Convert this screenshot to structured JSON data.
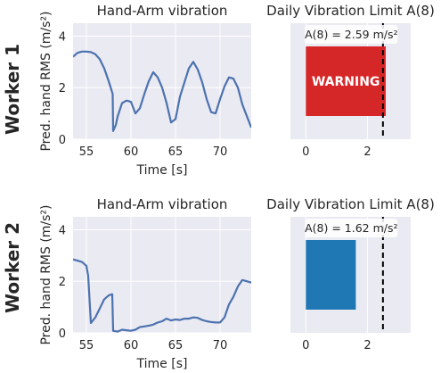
{
  "figure": {
    "rows": [
      {
        "label": "Worker 1"
      },
      {
        "label": "Worker 2"
      }
    ]
  },
  "colors": {
    "panel_bg": "#eaeaf2",
    "grid": "#ffffff",
    "line": "#4c72b0",
    "warning_bar": "#d62728",
    "ok_bar": "#1f77b4",
    "limit_line": "#000000",
    "text": "#262626"
  },
  "chart_data": [
    {
      "type": "line",
      "title": "Hand-Arm vibration",
      "xlabel": "Time [s]",
      "ylabel": "Pred. hand RMS (m/s²)",
      "xlim": [
        53.5,
        73.5
      ],
      "ylim": [
        0,
        4.5
      ],
      "xticks": [
        55,
        60,
        65,
        70
      ],
      "yticks": [
        0,
        2,
        4
      ],
      "grid": true,
      "series": [
        {
          "x": [
            53.5,
            54.0,
            54.5,
            55.0,
            55.5,
            56.0,
            56.5,
            57.0,
            57.5,
            57.95,
            58.0,
            58.3,
            58.5,
            59.0,
            59.5,
            60.0,
            60.5,
            61.0,
            61.5,
            62.0,
            62.5,
            63.0,
            63.5,
            64.0,
            64.5,
            65.0,
            65.5,
            66.0,
            66.5,
            67.0,
            67.5,
            68.0,
            68.5,
            69.0,
            69.5,
            70.0,
            70.5,
            71.0,
            71.5,
            72.0,
            72.5,
            73.0,
            73.5
          ],
          "y": [
            3.2,
            3.35,
            3.4,
            3.4,
            3.38,
            3.3,
            3.1,
            2.75,
            2.25,
            1.75,
            0.32,
            0.55,
            0.88,
            1.4,
            1.5,
            1.45,
            1.0,
            1.2,
            1.75,
            2.25,
            2.6,
            2.4,
            2.0,
            1.4,
            0.65,
            0.78,
            1.65,
            2.2,
            2.75,
            3.0,
            2.7,
            2.2,
            1.55,
            1.05,
            1.0,
            1.55,
            2.05,
            2.4,
            2.35,
            2.0,
            1.35,
            0.9,
            0.45
          ]
        }
      ]
    },
    {
      "type": "bar",
      "orientation": "horizontal",
      "title": "Daily Vibration Limit A(8)",
      "annotation": "A(8) = 2.59 m/s²",
      "bar_label": "WARNING",
      "value": 2.59,
      "limit": 2.5,
      "xlim": [
        -0.5,
        3.4
      ],
      "xticks": [
        0,
        2
      ],
      "bar_color": "warning",
      "grid": true
    },
    {
      "type": "line",
      "title": "Hand-Arm vibration",
      "xlabel": "Time [s]",
      "ylabel": "Pred. hand RMS (m/s²)",
      "xlim": [
        53.5,
        73.5
      ],
      "ylim": [
        0,
        4.5
      ],
      "xticks": [
        55,
        60,
        65,
        70
      ],
      "yticks": [
        0,
        2,
        4
      ],
      "grid": true,
      "series": [
        {
          "x": [
            53.5,
            54.0,
            54.5,
            55.0,
            55.2,
            55.5,
            56.0,
            56.5,
            57.0,
            57.5,
            57.9,
            58.0,
            58.5,
            59.0,
            59.5,
            60.0,
            60.5,
            61.0,
            61.5,
            62.0,
            62.5,
            63.0,
            63.5,
            64.0,
            64.5,
            65.0,
            65.5,
            66.0,
            66.5,
            67.0,
            67.5,
            68.0,
            68.5,
            69.0,
            69.5,
            70.0,
            70.5,
            71.0,
            71.5,
            72.0,
            72.5,
            73.0,
            73.5
          ],
          "y": [
            2.85,
            2.8,
            2.75,
            2.6,
            2.2,
            0.38,
            0.6,
            0.95,
            1.3,
            1.45,
            1.5,
            0.08,
            0.05,
            0.12,
            0.1,
            0.08,
            0.12,
            0.22,
            0.25,
            0.28,
            0.32,
            0.4,
            0.45,
            0.55,
            0.48,
            0.52,
            0.5,
            0.55,
            0.55,
            0.6,
            0.58,
            0.5,
            0.45,
            0.42,
            0.4,
            0.4,
            0.6,
            1.1,
            1.4,
            1.8,
            2.05,
            2.0,
            1.95
          ]
        }
      ]
    },
    {
      "type": "bar",
      "orientation": "horizontal",
      "title": "Daily Vibration Limit A(8)",
      "annotation": "A(8) = 1.62 m/s²",
      "bar_label": "",
      "value": 1.62,
      "limit": 2.5,
      "xlim": [
        -0.5,
        3.4
      ],
      "xticks": [
        0,
        2
      ],
      "bar_color": "ok",
      "grid": true
    }
  ]
}
